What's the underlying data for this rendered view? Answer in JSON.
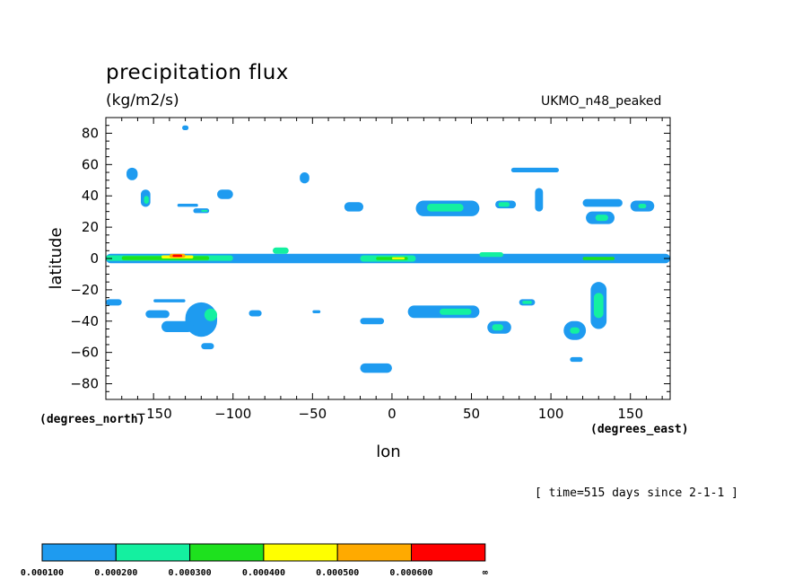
{
  "chart_data": {
    "type": "heatmap",
    "title": "precipitation flux",
    "units": "(kg/m2/s)",
    "model_label": "UKMO_n48_peaked",
    "xlabel": "lon",
    "ylabel": "latitude",
    "x_units_label": "(degrees_east)",
    "y_units_label": "(degrees_north)",
    "time_label": "[ time=515 days since 2-1-1 ]",
    "xlim": [
      -180,
      175
    ],
    "ylim": [
      -90,
      90
    ],
    "x_ticks": [
      -150,
      -100,
      -50,
      0,
      50,
      100,
      150
    ],
    "x_tick_labels": [
      "−150",
      "−100",
      "−50",
      "0",
      "50",
      "100",
      "150"
    ],
    "y_ticks": [
      80,
      60,
      40,
      20,
      0,
      -20,
      -40,
      -60,
      -80
    ],
    "y_tick_labels": [
      "80",
      "60",
      "40",
      "20",
      "0",
      "−20",
      "−40",
      "−60",
      "−80"
    ],
    "levels": [
      "0.000100",
      "0.000200",
      "0.000300",
      "0.000400",
      "0.000500",
      "0.000600",
      "∞"
    ],
    "level_colors": [
      "#1e9bf0",
      "#14f0a0",
      "#1ee11e",
      "#ffff00",
      "#ffaa00",
      "#ff0000"
    ],
    "regions": [
      {
        "level": 0,
        "lon": [
          -180,
          175
        ],
        "lat": [
          -3,
          3
        ]
      },
      {
        "level": 1,
        "lon": [
          -180,
          -100
        ],
        "lat": [
          -1.5,
          2
        ]
      },
      {
        "level": 2,
        "lon": [
          -170,
          -115
        ],
        "lat": [
          -1,
          1.5
        ]
      },
      {
        "level": 3,
        "lon": [
          -145,
          -125
        ],
        "lat": [
          0,
          2
        ]
      },
      {
        "level": 4,
        "lon": [
          -140,
          -130
        ],
        "lat": [
          0.5,
          3
        ]
      },
      {
        "level": 5,
        "lon": [
          -138,
          -132
        ],
        "lat": [
          1,
          2.5
        ]
      },
      {
        "level": 1,
        "lon": [
          -75,
          -65
        ],
        "lat": [
          3,
          7
        ]
      },
      {
        "level": 1,
        "lon": [
          -20,
          15
        ],
        "lat": [
          -2,
          2
        ]
      },
      {
        "level": 2,
        "lon": [
          -10,
          10
        ],
        "lat": [
          -1,
          1
        ]
      },
      {
        "level": 3,
        "lon": [
          0,
          8
        ],
        "lat": [
          -0.5,
          0.8
        ]
      },
      {
        "level": 1,
        "lon": [
          55,
          70
        ],
        "lat": [
          1,
          4
        ]
      },
      {
        "level": 2,
        "lon": [
          120,
          140
        ],
        "lat": [
          -1,
          1
        ]
      },
      {
        "level": 0,
        "lon": [
          -167,
          -160
        ],
        "lat": [
          50,
          58
        ]
      },
      {
        "level": 0,
        "lon": [
          -158,
          -152
        ],
        "lat": [
          33,
          44
        ]
      },
      {
        "level": 1,
        "lon": [
          -156,
          -153
        ],
        "lat": [
          35,
          40
        ]
      },
      {
        "level": 0,
        "lon": [
          -110,
          -100
        ],
        "lat": [
          38,
          44
        ]
      },
      {
        "level": 0,
        "lon": [
          -125,
          -115
        ],
        "lat": [
          29,
          32
        ]
      },
      {
        "level": 1,
        "lon": [
          -120,
          -116
        ],
        "lat": [
          30,
          31
        ]
      },
      {
        "level": 0,
        "lon": [
          -135,
          -122
        ],
        "lat": [
          33,
          35
        ]
      },
      {
        "level": 0,
        "lon": [
          -132,
          -128
        ],
        "lat": [
          82,
          85
        ]
      },
      {
        "level": 0,
        "lon": [
          -58,
          -52
        ],
        "lat": [
          48,
          55
        ]
      },
      {
        "level": 0,
        "lon": [
          -30,
          -18
        ],
        "lat": [
          30,
          36
        ]
      },
      {
        "level": 0,
        "lon": [
          15,
          55
        ],
        "lat": [
          27,
          37
        ]
      },
      {
        "level": 1,
        "lon": [
          22,
          45
        ],
        "lat": [
          30,
          35
        ]
      },
      {
        "level": 0,
        "lon": [
          65,
          78
        ],
        "lat": [
          32,
          37
        ]
      },
      {
        "level": 1,
        "lon": [
          67,
          74
        ],
        "lat": [
          33,
          36
        ]
      },
      {
        "level": 0,
        "lon": [
          75,
          105
        ],
        "lat": [
          55,
          58
        ]
      },
      {
        "level": 0,
        "lon": [
          90,
          95
        ],
        "lat": [
          30,
          45
        ]
      },
      {
        "level": 0,
        "lon": [
          120,
          145
        ],
        "lat": [
          33,
          38
        ]
      },
      {
        "level": 0,
        "lon": [
          122,
          140
        ],
        "lat": [
          22,
          30
        ]
      },
      {
        "level": 1,
        "lon": [
          128,
          136
        ],
        "lat": [
          24,
          28
        ]
      },
      {
        "level": 0,
        "lon": [
          150,
          165
        ],
        "lat": [
          30,
          37
        ]
      },
      {
        "level": 1,
        "lon": [
          155,
          160
        ],
        "lat": [
          32,
          35
        ]
      },
      {
        "level": 0,
        "lon": [
          -180,
          -170
        ],
        "lat": [
          -30,
          -26
        ]
      },
      {
        "level": 0,
        "lon": [
          -150,
          -130
        ],
        "lat": [
          -28,
          -26
        ]
      },
      {
        "level": 0,
        "lon": [
          -130,
          -110
        ],
        "lat": [
          -50,
          -28
        ]
      },
      {
        "level": 1,
        "lon": [
          -118,
          -110
        ],
        "lat": [
          -40,
          -32
        ]
      },
      {
        "level": 0,
        "lon": [
          -155,
          -140
        ],
        "lat": [
          -38,
          -33
        ]
      },
      {
        "level": 0,
        "lon": [
          -145,
          -125
        ],
        "lat": [
          -47,
          -40
        ]
      },
      {
        "level": 0,
        "lon": [
          -120,
          -112
        ],
        "lat": [
          -58,
          -54
        ]
      },
      {
        "level": 0,
        "lon": [
          -90,
          -82
        ],
        "lat": [
          -37,
          -33
        ]
      },
      {
        "level": 0,
        "lon": [
          -50,
          -45
        ],
        "lat": [
          -35,
          -33
        ]
      },
      {
        "level": 0,
        "lon": [
          -20,
          -5
        ],
        "lat": [
          -42,
          -38
        ]
      },
      {
        "level": 0,
        "lon": [
          10,
          55
        ],
        "lat": [
          -38,
          -30
        ]
      },
      {
        "level": 1,
        "lon": [
          30,
          50
        ],
        "lat": [
          -36,
          -32
        ]
      },
      {
        "level": 0,
        "lon": [
          80,
          90
        ],
        "lat": [
          -30,
          -26
        ]
      },
      {
        "level": 1,
        "lon": [
          82,
          88
        ],
        "lat": [
          -29,
          -27
        ]
      },
      {
        "level": 0,
        "lon": [
          60,
          75
        ],
        "lat": [
          -48,
          -40
        ]
      },
      {
        "level": 1,
        "lon": [
          63,
          70
        ],
        "lat": [
          -46,
          -42
        ]
      },
      {
        "level": 0,
        "lon": [
          125,
          135
        ],
        "lat": [
          -45,
          -15
        ]
      },
      {
        "level": 1,
        "lon": [
          127,
          133
        ],
        "lat": [
          -38,
          -22
        ]
      },
      {
        "level": 0,
        "lon": [
          108,
          122
        ],
        "lat": [
          -52,
          -40
        ]
      },
      {
        "level": 1,
        "lon": [
          112,
          118
        ],
        "lat": [
          -48,
          -44
        ]
      },
      {
        "level": 0,
        "lon": [
          112,
          120
        ],
        "lat": [
          -66,
          -63
        ]
      },
      {
        "level": 0,
        "lon": [
          -20,
          0
        ],
        "lat": [
          -73,
          -67
        ]
      }
    ]
  }
}
